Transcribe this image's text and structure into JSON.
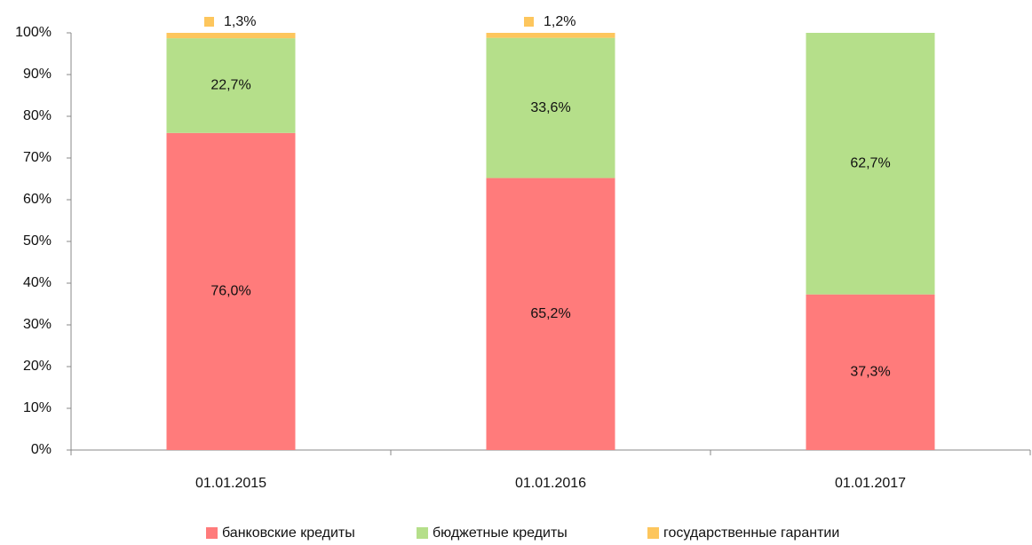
{
  "chart_data": {
    "type": "stacked_bar",
    "categories": [
      "01.01.2015",
      "01.01.2016",
      "01.01.2017"
    ],
    "series": [
      {
        "name": "банковские кредиты",
        "color": "#ff7b7b",
        "values": [
          76.0,
          65.2,
          37.3
        ],
        "value_labels": [
          "76,0%",
          "65,2%",
          "37,3%"
        ]
      },
      {
        "name": "бюджетные кредиты",
        "color": "#b5df8a",
        "values": [
          22.7,
          33.6,
          62.7
        ],
        "value_labels": [
          "22,7%",
          "33,6%",
          "62,7%"
        ]
      },
      {
        "name": "государственные гарантии",
        "color": "#fdc65d",
        "values": [
          1.3,
          1.2,
          null
        ],
        "value_labels": [
          "1,3%",
          "1,2%",
          null
        ]
      }
    ],
    "ylim": [
      0,
      100
    ],
    "yticks": [
      {
        "value": 0,
        "label": "0%"
      },
      {
        "value": 10,
        "label": "10%"
      },
      {
        "value": 20,
        "label": "20%"
      },
      {
        "value": 30,
        "label": "30%"
      },
      {
        "value": 40,
        "label": "40%"
      },
      {
        "value": 50,
        "label": "50%"
      },
      {
        "value": 60,
        "label": "60%"
      },
      {
        "value": 70,
        "label": "70%"
      },
      {
        "value": 80,
        "label": "80%"
      },
      {
        "value": 90,
        "label": "90%"
      },
      {
        "value": 100,
        "label": "100%"
      }
    ],
    "legend": "bottom"
  }
}
